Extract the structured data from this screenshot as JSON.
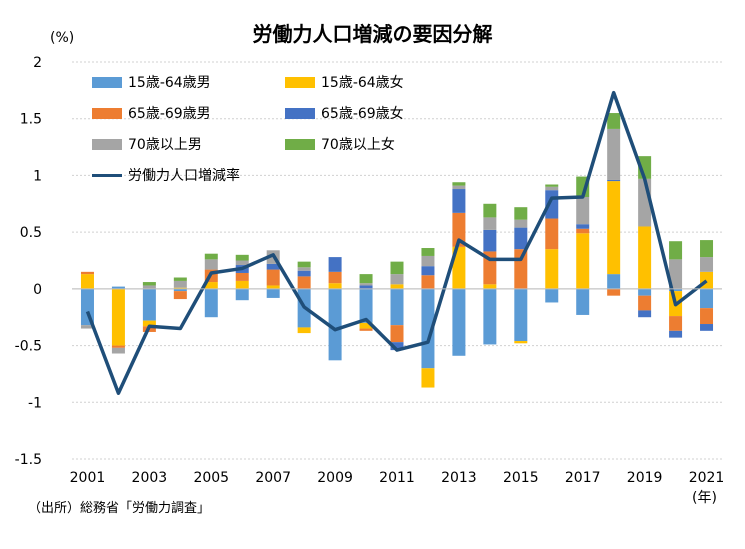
{
  "title": "労働力人口増減の要因分解",
  "y_unit": "(%)",
  "x_unit": "(年)",
  "source": "（出所）総務省「労働力調査」",
  "chart_data": {
    "type": "bar",
    "stacked": true,
    "title": "労働力人口増減の要因分解",
    "ylim": [
      -1.5,
      2
    ],
    "yticks": [
      2,
      1.5,
      1,
      0.5,
      0,
      -0.5,
      -1,
      -1.5
    ],
    "grid": true,
    "legend_position": "top-left",
    "categories": [
      "2001",
      "2002",
      "2003",
      "2004",
      "2005",
      "2006",
      "2007",
      "2008",
      "2009",
      "2010",
      "2011",
      "2012",
      "2013",
      "2014",
      "2015",
      "2016",
      "2017",
      "2018",
      "2019",
      "2020",
      "2021"
    ],
    "xtick_labels": [
      "2001",
      "2003",
      "2005",
      "2007",
      "2009",
      "2011",
      "2013",
      "2015",
      "2017",
      "2019",
      "2021"
    ],
    "series": [
      {
        "name": "15歳-64歳男",
        "color": "#5b9bd5",
        "values": [
          -0.32,
          0.02,
          -0.28,
          -0.02,
          -0.25,
          -0.1,
          -0.08,
          -0.34,
          -0.63,
          -0.3,
          -0.32,
          -0.7,
          -0.59,
          -0.49,
          -0.46,
          -0.12,
          -0.23,
          0.13,
          -0.06,
          -0.02,
          -0.17
        ]
      },
      {
        "name": "15歳-64歳女",
        "color": "#ffc000",
        "values": [
          0.13,
          -0.5,
          -0.05,
          0.01,
          0.06,
          0.07,
          0.03,
          -0.05,
          0.05,
          -0.05,
          0.04,
          -0.17,
          0.37,
          0.04,
          -0.02,
          0.35,
          0.49,
          0.82,
          0.55,
          -0.22,
          0.15
        ]
      },
      {
        "name": "65歳-69歳男",
        "color": "#ed7d31",
        "values": [
          0.02,
          -0.02,
          -0.05,
          -0.07,
          0.11,
          0.07,
          0.14,
          0.11,
          0.1,
          -0.02,
          -0.15,
          0.12,
          0.3,
          0.29,
          0.35,
          0.27,
          0.04,
          -0.06,
          -0.13,
          -0.13,
          -0.14
        ]
      },
      {
        "name": "65歳-69歳女",
        "color": "#4472c4",
        "values": [
          0.0,
          0.0,
          0.0,
          0.0,
          0.0,
          0.07,
          0.05,
          0.05,
          0.13,
          0.03,
          -0.07,
          0.08,
          0.21,
          0.19,
          0.19,
          0.25,
          0.04,
          0.01,
          -0.06,
          -0.06,
          -0.06
        ]
      },
      {
        "name": "70歳以上男",
        "color": "#a5a5a5",
        "values": [
          -0.03,
          -0.05,
          0.03,
          0.06,
          0.09,
          0.04,
          0.12,
          0.03,
          0.0,
          0.02,
          0.09,
          0.09,
          0.03,
          0.11,
          0.07,
          0.03,
          0.24,
          0.45,
          0.42,
          0.26,
          0.13
        ]
      },
      {
        "name": "70歳以上女",
        "color": "#70ad47",
        "values": [
          0.0,
          0.0,
          0.03,
          0.03,
          0.05,
          0.05,
          0.0,
          0.05,
          0.0,
          0.08,
          0.11,
          0.07,
          0.03,
          0.12,
          0.11,
          0.02,
          0.18,
          0.14,
          0.2,
          0.16,
          0.15
        ]
      },
      {
        "name": "労働力人口増減率",
        "type": "line",
        "color": "#1f4e79",
        "values": [
          -0.2,
          -0.92,
          -0.33,
          -0.35,
          0.14,
          0.18,
          0.3,
          -0.16,
          -0.36,
          -0.27,
          -0.54,
          -0.47,
          0.43,
          0.26,
          0.26,
          0.8,
          0.81,
          1.73,
          0.97,
          -0.14,
          0.07
        ]
      }
    ]
  }
}
